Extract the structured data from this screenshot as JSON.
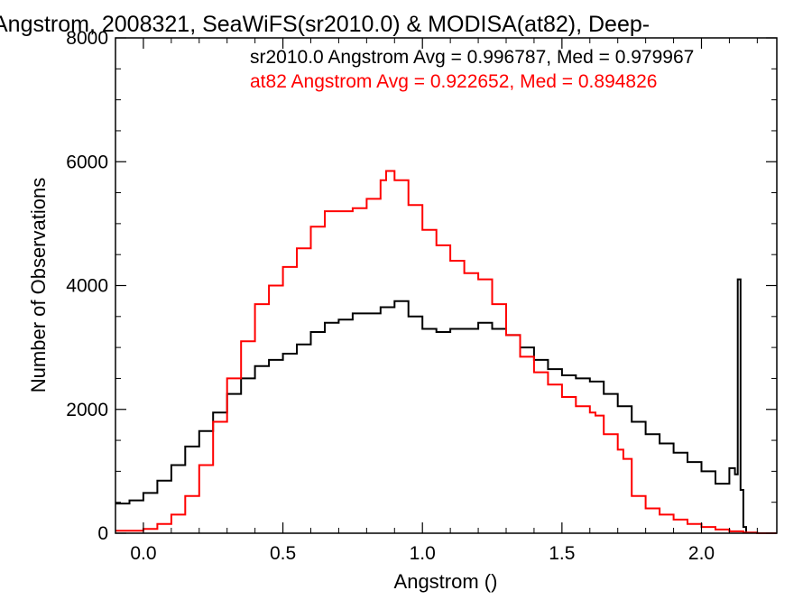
{
  "chart_data": {
    "type": "line",
    "title": "Angstrom, 2008321, SeaWiFS(sr2010.0) & MODISA(at82), Deep-",
    "xlabel": "Angstrom ()",
    "ylabel": "Number of Observations",
    "xlim": [
      -0.1,
      2.27
    ],
    "ylim": [
      0,
      8000
    ],
    "x_ticks": [
      {
        "value": 0.0,
        "label": "0.0"
      },
      {
        "value": 0.5,
        "label": "0.5"
      },
      {
        "value": 1.0,
        "label": "1.0"
      },
      {
        "value": 1.5,
        "label": "1.5"
      },
      {
        "value": 2.0,
        "label": "2.0"
      }
    ],
    "y_ticks": [
      {
        "value": 0,
        "label": "0"
      },
      {
        "value": 2000,
        "label": "2000"
      },
      {
        "value": 4000,
        "label": "4000"
      },
      {
        "value": 6000,
        "label": "6000"
      },
      {
        "value": 8000,
        "label": "8000"
      }
    ],
    "grid": false,
    "legend": {
      "placement": "top-right",
      "entries": [
        {
          "text": "sr2010.0 Angstrom Avg = 0.996787, Med = 0.979967",
          "color": "#000000"
        },
        {
          "text": "at82 Angstrom Avg = 0.922652, Med = 0.894826",
          "color": "#ff0000"
        }
      ]
    },
    "series": [
      {
        "color": "#000000",
        "points": [
          [
            -0.1,
            480
          ],
          [
            -0.05,
            530
          ],
          [
            0.0,
            650
          ],
          [
            0.05,
            850
          ],
          [
            0.1,
            1100
          ],
          [
            0.15,
            1400
          ],
          [
            0.2,
            1650
          ],
          [
            0.25,
            1950
          ],
          [
            0.3,
            2250
          ],
          [
            0.35,
            2500
          ],
          [
            0.4,
            2700
          ],
          [
            0.45,
            2800
          ],
          [
            0.5,
            2900
          ],
          [
            0.55,
            3050
          ],
          [
            0.6,
            3250
          ],
          [
            0.65,
            3400
          ],
          [
            0.7,
            3450
          ],
          [
            0.75,
            3550
          ],
          [
            0.8,
            3550
          ],
          [
            0.85,
            3650
          ],
          [
            0.9,
            3750
          ],
          [
            0.95,
            3500
          ],
          [
            1.0,
            3300
          ],
          [
            1.05,
            3250
          ],
          [
            1.1,
            3300
          ],
          [
            1.15,
            3300
          ],
          [
            1.2,
            3400
          ],
          [
            1.25,
            3300
          ],
          [
            1.3,
            3200
          ],
          [
            1.35,
            3000
          ],
          [
            1.4,
            2800
          ],
          [
            1.45,
            2650
          ],
          [
            1.5,
            2550
          ],
          [
            1.55,
            2500
          ],
          [
            1.6,
            2450
          ],
          [
            1.65,
            2250
          ],
          [
            1.7,
            2050
          ],
          [
            1.75,
            1800
          ],
          [
            1.8,
            1600
          ],
          [
            1.85,
            1450
          ],
          [
            1.9,
            1300
          ],
          [
            1.95,
            1150
          ],
          [
            2.0,
            1000
          ],
          [
            2.05,
            800
          ],
          [
            2.1,
            1050
          ],
          [
            2.12,
            950
          ],
          [
            2.13,
            4100
          ],
          [
            2.14,
            700
          ],
          [
            2.15,
            100
          ],
          [
            2.16,
            0
          ]
        ]
      },
      {
        "color": "#ff0000",
        "points": [
          [
            -0.1,
            40
          ],
          [
            -0.05,
            40
          ],
          [
            0.0,
            70
          ],
          [
            0.05,
            150
          ],
          [
            0.1,
            300
          ],
          [
            0.15,
            600
          ],
          [
            0.2,
            1100
          ],
          [
            0.25,
            1800
          ],
          [
            0.3,
            2500
          ],
          [
            0.35,
            3100
          ],
          [
            0.4,
            3700
          ],
          [
            0.45,
            4000
          ],
          [
            0.5,
            4300
          ],
          [
            0.55,
            4600
          ],
          [
            0.6,
            4950
          ],
          [
            0.65,
            5200
          ],
          [
            0.7,
            5200
          ],
          [
            0.75,
            5250
          ],
          [
            0.8,
            5400
          ],
          [
            0.85,
            5700
          ],
          [
            0.87,
            5850
          ],
          [
            0.9,
            5700
          ],
          [
            0.95,
            5300
          ],
          [
            1.0,
            4900
          ],
          [
            1.05,
            4650
          ],
          [
            1.1,
            4400
          ],
          [
            1.15,
            4200
          ],
          [
            1.2,
            4100
          ],
          [
            1.25,
            3700
          ],
          [
            1.3,
            3200
          ],
          [
            1.35,
            2850
          ],
          [
            1.4,
            2600
          ],
          [
            1.45,
            2400
          ],
          [
            1.5,
            2200
          ],
          [
            1.55,
            2050
          ],
          [
            1.6,
            1950
          ],
          [
            1.62,
            1900
          ],
          [
            1.65,
            1600
          ],
          [
            1.7,
            1350
          ],
          [
            1.72,
            1200
          ],
          [
            1.75,
            600
          ],
          [
            1.8,
            400
          ],
          [
            1.85,
            300
          ],
          [
            1.9,
            220
          ],
          [
            1.95,
            150
          ],
          [
            2.0,
            100
          ],
          [
            2.05,
            60
          ],
          [
            2.1,
            30
          ],
          [
            2.15,
            10
          ],
          [
            2.2,
            0
          ],
          [
            2.27,
            0
          ]
        ]
      }
    ]
  }
}
